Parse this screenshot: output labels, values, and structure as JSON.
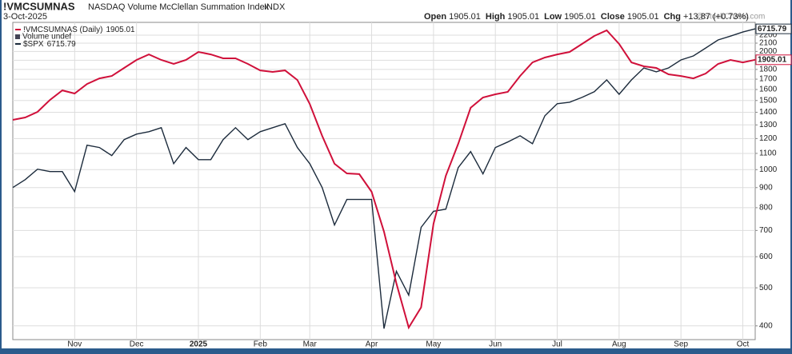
{
  "chart_data": {
    "type": "line",
    "title": "!VMCSUMNAS",
    "subtitle": "NASDAQ Volume McClellan Summation Index",
    "exchange": "INDX",
    "date": "3-Oct-2025",
    "ohlc": [
      {
        "label": "Open",
        "value": 1905.01
      },
      {
        "label": "High",
        "value": 1905.01
      },
      {
        "label": "Low",
        "value": 1905.01
      },
      {
        "label": "Close",
        "value": 1905.01
      },
      {
        "label": "Chg",
        "value": "+13.87 (+0.73%)"
      }
    ],
    "watermark": "@StockCharts.com",
    "volume_legend": "Volume undef",
    "log_scale": true,
    "grid": true,
    "categories": [
      null,
      null,
      null,
      null,
      null,
      "Nov",
      null,
      null,
      null,
      null,
      "Dec",
      null,
      null,
      null,
      null,
      "2025",
      null,
      null,
      null,
      null,
      "Feb",
      null,
      null,
      null,
      "Mar",
      null,
      null,
      null,
      null,
      "Apr",
      null,
      null,
      null,
      null,
      "May",
      null,
      null,
      null,
      null,
      "Jun",
      null,
      null,
      null,
      null,
      "Jul",
      null,
      null,
      null,
      null,
      "Aug",
      null,
      null,
      null,
      null,
      "Sep",
      null,
      null,
      null,
      null,
      "Oct",
      null
    ],
    "ylim": [
      369,
      2372
    ],
    "yticks": [
      400,
      500,
      600,
      700,
      800,
      900,
      1000,
      1100,
      1200,
      1300,
      1400,
      1500,
      1600,
      1700,
      1800,
      1900,
      2000,
      2100,
      2200
    ],
    "y2lim": [
      4943,
      6759
    ],
    "series": [
      {
        "name": "!VMCSUMNAS (Daily)",
        "color": "#d0103a",
        "values": [
          1339,
          1358,
          1403,
          1505,
          1592,
          1563,
          1653,
          1708,
          1732,
          1816,
          1903,
          1966,
          1903,
          1859,
          1903,
          1994,
          1966,
          1921,
          1921,
          1859,
          1790,
          1774,
          1790,
          1692,
          1470,
          1219,
          1035,
          978,
          974,
          878,
          695,
          513,
          396,
          446,
          728,
          965,
          1164,
          1437,
          1527,
          1556,
          1578,
          1732,
          1876,
          1930,
          1966,
          1994,
          2090,
          2190,
          2263,
          2090,
          1876,
          1833,
          1816,
          1749,
          1732,
          1708,
          1757,
          1859,
          1903,
          1876,
          1905.01
        ]
      },
      {
        "name": "$SPX",
        "color": "#1c2b3c",
        "axis": "y2",
        "values": [
          5743,
          5788,
          5848,
          5834,
          5834,
          5720,
          5988,
          5974,
          5927,
          6021,
          6054,
          6068,
          6092,
          5880,
          5974,
          5903,
          5903,
          6021,
          6092,
          6021,
          6068,
          6092,
          6116,
          5974,
          5880,
          5743,
          5535,
          5676,
          5676,
          5676,
          4997,
          5288,
          5165,
          5522,
          5610,
          5622,
          5857,
          5950,
          5821,
          5974,
          6007,
          6044,
          5997,
          6164,
          6238,
          6247,
          6277,
          6312,
          6386,
          6296,
          6386,
          6462,
          6437,
          6462,
          6513,
          6539,
          6590,
          6643,
          6668,
          6695,
          6715.79
        ]
      }
    ]
  }
}
